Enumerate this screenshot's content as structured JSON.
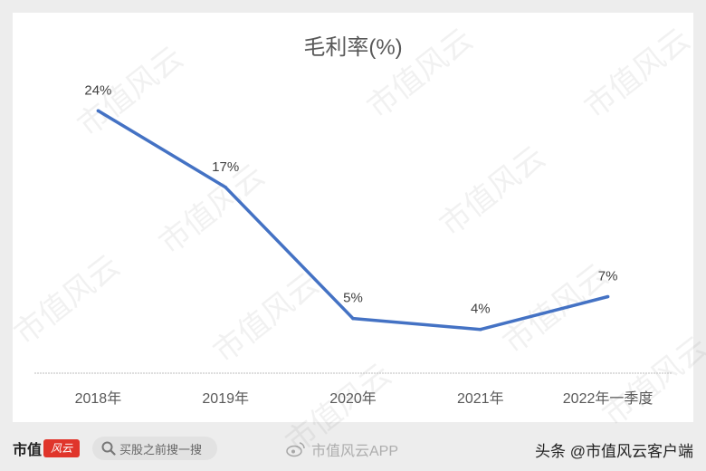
{
  "chart_data": {
    "type": "line",
    "title": "毛利率(%)",
    "categories": [
      "2018年",
      "2019年",
      "2020年",
      "2021年",
      "2022年一季度"
    ],
    "values": [
      24,
      17,
      5,
      4,
      7
    ],
    "data_labels": [
      "24%",
      "17%",
      "5%",
      "4%",
      "7%"
    ],
    "series_color": "#4472c4",
    "ylim": [
      0,
      28
    ],
    "grid": false,
    "legend": "none"
  },
  "watermark": "市值风云",
  "footer": {
    "logo_text": "市值",
    "logo_script": "风云",
    "search_placeholder": "买股之前搜一搜",
    "weibo_text": "市值风云APP",
    "toutiao_text": "头条 @市值风云客户端"
  }
}
